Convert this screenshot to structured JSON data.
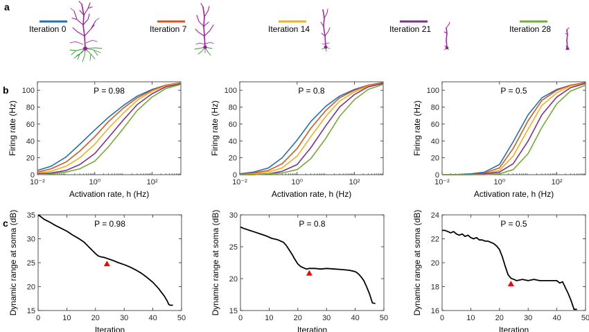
{
  "panels": {
    "a": "a",
    "b": "b",
    "c": "c"
  },
  "series_colors": [
    "#1f6fb5",
    "#d9541b",
    "#edb120",
    "#7e2f8e",
    "#72ac30"
  ],
  "neuron_colors": {
    "dendrite": "#a516a5",
    "axon": "#2f9a2f"
  },
  "legend_items": [
    {
      "label": "Iteration 0",
      "color": "#1f6fb5"
    },
    {
      "label": "Iteration 7",
      "color": "#d9541b"
    },
    {
      "label": "Iteration 14",
      "color": "#edb120"
    },
    {
      "label": "Iteration 21",
      "color": "#7e2f8e"
    },
    {
      "label": "Iteration 28",
      "color": "#72ac30"
    }
  ],
  "chart_data": [
    {
      "id": "b1",
      "type": "line",
      "annotation": "P = 0.98",
      "xlabel": "Activation rate, h (Hz)",
      "ylabel": "Firing rate (Hz)",
      "xscale": "log",
      "xlim": [
        0.01,
        1000
      ],
      "ylim": [
        0,
        110
      ],
      "xticks": [
        0.01,
        1,
        100
      ],
      "xtick_labels": [
        "10⁻²",
        "10⁰",
        "10²"
      ],
      "yticks": [
        0,
        20,
        40,
        60,
        80,
        100
      ],
      "grid": false,
      "series": [
        {
          "x": [
            0.01,
            0.03,
            0.1,
            0.3,
            1,
            3,
            10,
            30,
            100,
            300,
            1000
          ],
          "y": [
            5,
            10,
            21,
            36,
            53,
            68,
            82,
            93,
            101,
            106,
            109
          ]
        },
        {
          "x": [
            0.01,
            0.03,
            0.1,
            0.3,
            1,
            3,
            10,
            30,
            100,
            300,
            1000
          ],
          "y": [
            3,
            7,
            15,
            28,
            45,
            63,
            79,
            91,
            100,
            106,
            109
          ]
        },
        {
          "x": [
            0.01,
            0.03,
            0.1,
            0.3,
            1,
            3,
            10,
            30,
            100,
            300,
            1000
          ],
          "y": [
            2,
            4,
            10,
            20,
            36,
            55,
            73,
            88,
            99,
            105,
            109
          ]
        },
        {
          "x": [
            0.01,
            0.03,
            0.1,
            0.3,
            1,
            3,
            10,
            30,
            100,
            300,
            1000
          ],
          "y": [
            1,
            2,
            5,
            12,
            25,
            44,
            65,
            83,
            96,
            104,
            108
          ]
        },
        {
          "x": [
            0.01,
            0.03,
            0.1,
            0.3,
            1,
            3,
            10,
            30,
            100,
            300,
            1000
          ],
          "y": [
            0,
            1,
            3,
            7,
            16,
            33,
            55,
            76,
            92,
            102,
            107
          ]
        }
      ]
    },
    {
      "id": "b2",
      "type": "line",
      "annotation": "P = 0.8",
      "xlabel": "Activation rate, h (Hz)",
      "ylabel": "Firing rate (Hz)",
      "xscale": "log",
      "xlim": [
        0.01,
        1000
      ],
      "ylim": [
        0,
        110
      ],
      "xticks": [
        0.01,
        1,
        100
      ],
      "xtick_labels": [
        "10⁻²",
        "10⁰",
        "10²"
      ],
      "yticks": [
        0,
        20,
        40,
        60,
        80,
        100
      ],
      "grid": false,
      "series": [
        {
          "x": [
            0.01,
            0.03,
            0.1,
            0.3,
            1,
            3,
            10,
            30,
            100,
            300,
            1000
          ],
          "y": [
            1,
            3,
            8,
            20,
            41,
            63,
            81,
            93,
            101,
            106,
            109
          ]
        },
        {
          "x": [
            0.01,
            0.03,
            0.1,
            0.3,
            1,
            3,
            10,
            30,
            100,
            300,
            1000
          ],
          "y": [
            0,
            2,
            5,
            13,
            31,
            55,
            76,
            91,
            100,
            106,
            109
          ]
        },
        {
          "x": [
            0.01,
            0.03,
            0.1,
            0.3,
            1,
            3,
            10,
            30,
            100,
            300,
            1000
          ],
          "y": [
            0,
            1,
            3,
            8,
            22,
            45,
            69,
            87,
            98,
            105,
            108
          ]
        },
        {
          "x": [
            0.01,
            0.03,
            0.1,
            0.3,
            1,
            3,
            10,
            30,
            100,
            300,
            1000
          ],
          "y": [
            0,
            0,
            1,
            4,
            12,
            32,
            58,
            80,
            95,
            104,
            108
          ]
        },
        {
          "x": [
            0.01,
            0.03,
            0.1,
            0.3,
            1,
            3,
            10,
            30,
            100,
            300,
            1000
          ],
          "y": [
            0,
            0,
            1,
            2,
            6,
            19,
            43,
            69,
            89,
            101,
            107
          ]
        }
      ]
    },
    {
      "id": "b3",
      "type": "line",
      "annotation": "P = 0.5",
      "xlabel": "Activation rate, h (Hz)",
      "ylabel": "Firing rate (Hz)",
      "xscale": "log",
      "xlim": [
        0.01,
        1000
      ],
      "ylim": [
        0,
        110
      ],
      "xticks": [
        0.01,
        1,
        100
      ],
      "xtick_labels": [
        "10⁻²",
        "10⁰",
        "10²"
      ],
      "yticks": [
        0,
        20,
        40,
        60,
        80,
        100
      ],
      "grid": false,
      "series": [
        {
          "x": [
            0.01,
            0.03,
            0.1,
            0.3,
            1,
            3,
            10,
            30,
            100,
            300,
            1000
          ],
          "y": [
            0,
            0,
            1,
            3,
            12,
            39,
            71,
            91,
            101,
            106,
            109
          ]
        },
        {
          "x": [
            0.01,
            0.03,
            0.1,
            0.3,
            1,
            3,
            10,
            30,
            100,
            300,
            1000
          ],
          "y": [
            0,
            0,
            0,
            2,
            8,
            31,
            64,
            88,
            100,
            106,
            109
          ]
        },
        {
          "x": [
            0.01,
            0.03,
            0.1,
            0.3,
            1,
            3,
            10,
            30,
            100,
            300,
            1000
          ],
          "y": [
            0,
            0,
            0,
            1,
            5,
            22,
            54,
            82,
            97,
            105,
            108
          ]
        },
        {
          "x": [
            0.01,
            0.03,
            0.1,
            0.3,
            1,
            3,
            10,
            30,
            100,
            300,
            1000
          ],
          "y": [
            0,
            0,
            0,
            1,
            3,
            13,
            40,
            71,
            92,
            103,
            108
          ]
        },
        {
          "x": [
            0.01,
            0.03,
            0.1,
            0.3,
            1,
            3,
            10,
            30,
            100,
            300,
            1000
          ],
          "y": [
            0,
            0,
            0,
            0,
            1,
            6,
            25,
            56,
            84,
            99,
            106
          ]
        }
      ]
    },
    {
      "id": "c1",
      "type": "line",
      "annotation": "P = 0.98",
      "xlabel": "Iteration",
      "ylabel": "Dynamic range at soma (dB)",
      "xlim": [
        0,
        50
      ],
      "ylim": [
        15,
        35
      ],
      "xticks": [
        0,
        10,
        20,
        30,
        40,
        50
      ],
      "yticks": [
        15,
        20,
        25,
        30,
        35
      ],
      "grid": false,
      "series": [
        {
          "x": [
            0,
            1,
            2,
            4,
            6,
            8,
            10,
            12,
            14,
            16,
            18,
            20,
            21,
            22,
            23,
            24,
            26,
            28,
            30,
            32,
            34,
            36,
            38,
            40,
            42,
            43,
            44,
            45,
            45.5,
            46,
            47
          ],
          "y": [
            35,
            34.6,
            34.1,
            33.5,
            32.8,
            32.2,
            31.6,
            30.8,
            30.1,
            29.3,
            28.1,
            26.9,
            26.4,
            26.2,
            26.1,
            25.9,
            25.5,
            25,
            24.6,
            24.1,
            23.5,
            22.8,
            21.9,
            20.9,
            19.6,
            18.8,
            18,
            17,
            16.3,
            16.1,
            16.1
          ]
        }
      ],
      "marker": {
        "x": 24,
        "y": 24.7,
        "shape": "triangle",
        "color": "#ff0000"
      }
    },
    {
      "id": "c2",
      "type": "line",
      "annotation": "P = 0.8",
      "xlabel": "Iteration",
      "ylabel": "Dynamic range at soma (dB)",
      "xlim": [
        0,
        50
      ],
      "ylim": [
        15,
        30
      ],
      "xticks": [
        0,
        10,
        20,
        30,
        40,
        50
      ],
      "yticks": [
        15,
        20,
        25,
        30
      ],
      "grid": false,
      "series": [
        {
          "x": [
            0,
            1,
            3,
            5,
            7,
            9,
            11,
            13,
            15,
            16,
            17,
            18,
            19,
            20,
            21,
            22,
            23,
            24,
            26,
            28,
            30,
            33,
            36,
            38,
            40,
            41,
            42,
            43,
            44,
            45,
            46,
            47
          ],
          "y": [
            28.1,
            27.9,
            27.6,
            27.3,
            27,
            26.7,
            26.3,
            26.1,
            25.7,
            25.2,
            24.5,
            23.8,
            23,
            22.3,
            21.9,
            21.7,
            21.5,
            21.6,
            21.6,
            21.5,
            21.6,
            21.5,
            21.4,
            21.3,
            21.1,
            20.8,
            20.3,
            19.7,
            18.7,
            17.6,
            16.2,
            16.1
          ]
        }
      ],
      "marker": {
        "x": 24,
        "y": 20.8,
        "shape": "triangle",
        "color": "#ff0000"
      }
    },
    {
      "id": "c3",
      "type": "line",
      "annotation": "P = 0.5",
      "xlabel": "Iteration",
      "ylabel": "Dynamic range at soma (dB)",
      "xlim": [
        0,
        50
      ],
      "ylim": [
        16,
        24
      ],
      "xticks": [
        0,
        10,
        20,
        30,
        40,
        50
      ],
      "yticks": [
        16,
        18,
        20,
        22,
        24
      ],
      "grid": false,
      "series": [
        {
          "x": [
            0,
            1,
            2,
            3,
            4,
            5,
            6,
            7,
            8,
            9,
            10,
            11,
            12,
            13,
            14,
            15,
            16,
            17,
            18,
            19,
            20,
            21,
            22,
            23,
            24,
            25,
            26,
            28,
            30,
            32,
            34,
            36,
            38,
            40,
            41,
            42,
            43,
            44,
            45,
            46,
            47
          ],
          "y": [
            22.7,
            22.7,
            22.6,
            22.5,
            22.6,
            22.4,
            22.3,
            22.4,
            22.2,
            22.3,
            22.1,
            22,
            22.1,
            21.9,
            21.9,
            21.8,
            21.8,
            21.7,
            21.6,
            21.4,
            21.1,
            20.5,
            19.7,
            19,
            18.7,
            18.6,
            18.5,
            18.6,
            18.5,
            18.6,
            18.5,
            18.5,
            18.5,
            18.5,
            18.3,
            18.4,
            17.9,
            17.4,
            16.8,
            16.1,
            16.1
          ]
        }
      ],
      "marker": {
        "x": 24,
        "y": 18.2,
        "shape": "triangle",
        "color": "#ff0000"
      }
    }
  ]
}
